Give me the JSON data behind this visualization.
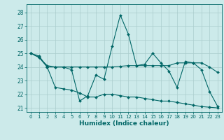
{
  "xlabel": "Humidex (Indice chaleur)",
  "bg_color": "#cceaea",
  "line_color": "#006666",
  "grid_color": "#aacccc",
  "xlim": [
    -0.5,
    23.5
  ],
  "ylim": [
    20.7,
    28.6
  ],
  "yticks": [
    21,
    22,
    23,
    24,
    25,
    26,
    27,
    28
  ],
  "xticks": [
    0,
    1,
    2,
    3,
    4,
    5,
    6,
    7,
    8,
    9,
    10,
    11,
    12,
    13,
    14,
    15,
    16,
    17,
    18,
    19,
    20,
    21,
    22,
    23
  ],
  "line1": {
    "x": [
      0,
      1,
      2,
      3,
      4,
      5,
      6,
      7,
      8,
      9,
      10,
      11,
      12,
      13,
      14,
      15,
      16,
      17,
      18,
      19,
      20,
      21,
      22,
      23
    ],
    "y": [
      25.0,
      24.8,
      24.0,
      24.0,
      24.0,
      23.8,
      21.5,
      21.9,
      23.4,
      23.1,
      25.5,
      27.8,
      26.4,
      24.1,
      24.2,
      25.0,
      24.3,
      23.7,
      22.5,
      24.4,
      24.3,
      23.8,
      22.2,
      21.1
    ]
  },
  "line2": {
    "x": [
      0,
      1,
      2,
      3,
      4,
      5,
      6,
      7,
      8,
      9,
      10,
      11,
      12,
      13,
      14,
      15,
      16,
      17,
      18,
      19,
      20,
      21,
      22,
      23
    ],
    "y": [
      25.0,
      24.7,
      24.1,
      24.0,
      24.0,
      24.0,
      24.0,
      24.0,
      24.0,
      24.0,
      24.0,
      24.05,
      24.1,
      24.1,
      24.1,
      24.1,
      24.1,
      24.1,
      24.3,
      24.3,
      24.3,
      24.3,
      24.0,
      23.6
    ]
  },
  "line3": {
    "x": [
      0,
      1,
      2,
      3,
      4,
      5,
      6,
      7,
      8,
      9,
      10,
      11,
      12,
      13,
      14,
      15,
      16,
      17,
      18,
      19,
      20,
      21,
      22,
      23
    ],
    "y": [
      25.0,
      24.7,
      24.0,
      22.5,
      22.4,
      22.3,
      22.1,
      21.8,
      21.8,
      22.0,
      22.0,
      21.9,
      21.8,
      21.8,
      21.7,
      21.6,
      21.5,
      21.5,
      21.4,
      21.3,
      21.2,
      21.1,
      21.05,
      21.0
    ]
  }
}
